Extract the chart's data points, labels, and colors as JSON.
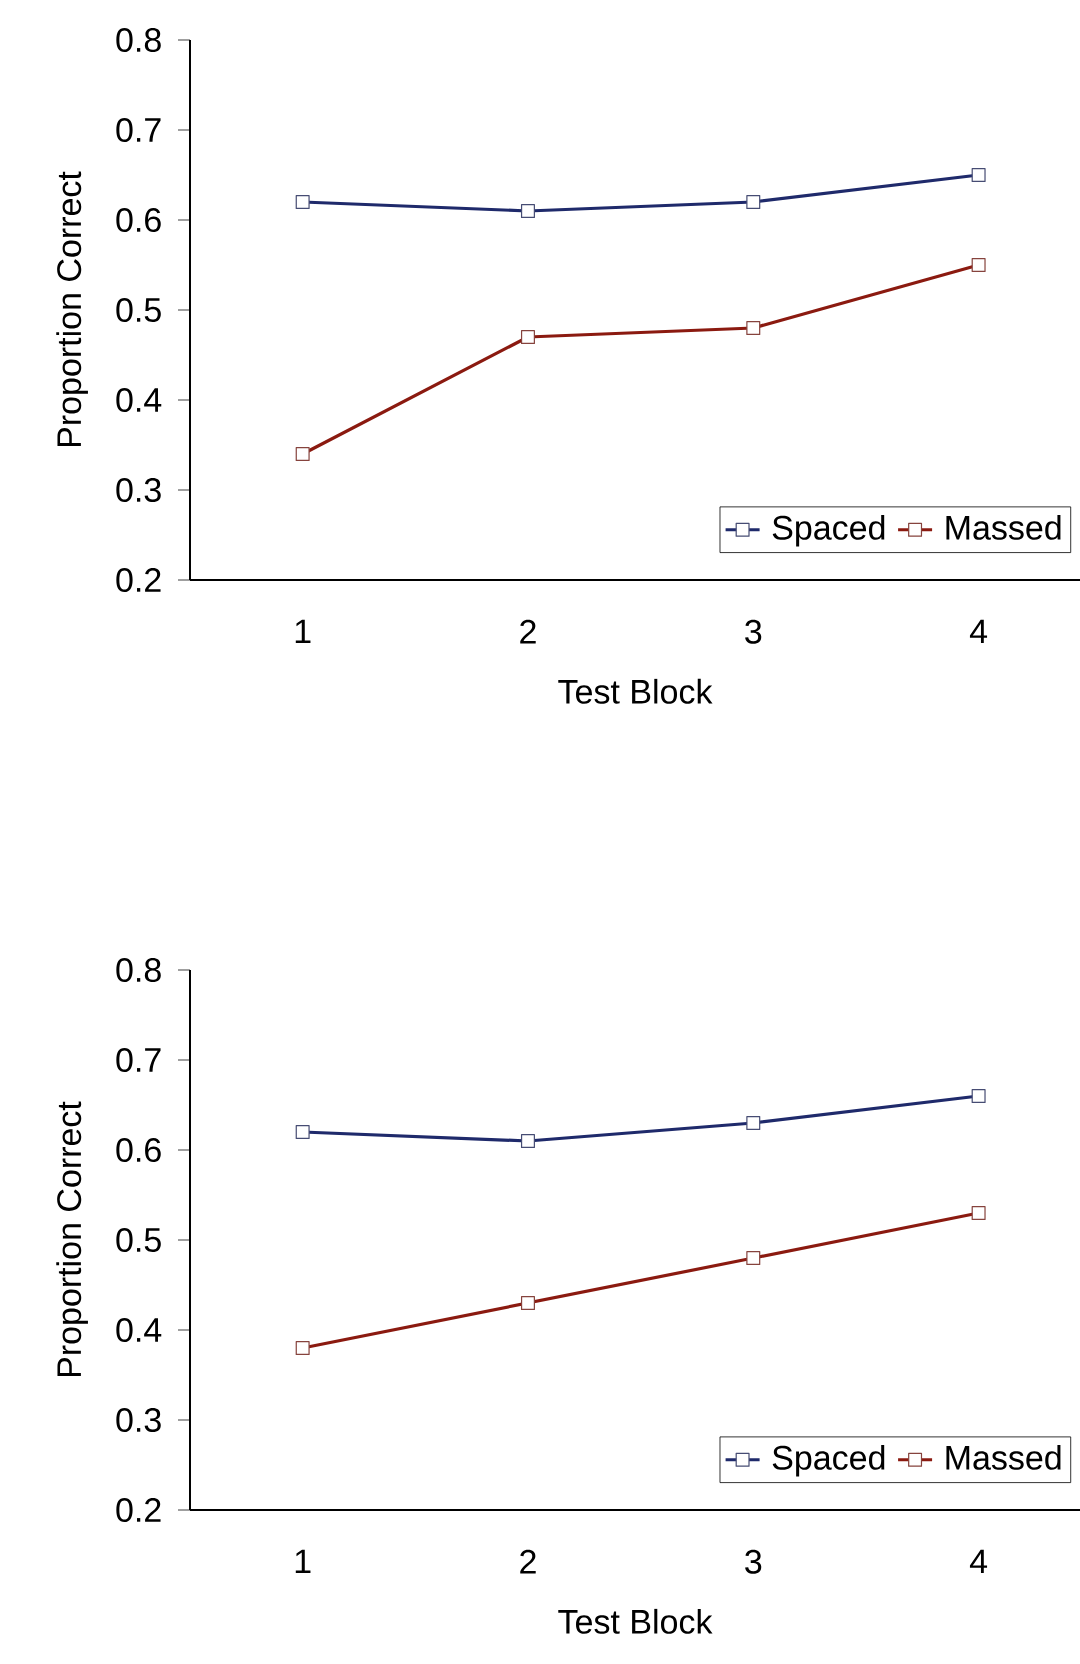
{
  "chart_data": [
    {
      "type": "line",
      "xlabel": "Test Block",
      "ylabel": "Proportion Correct",
      "categories": [
        "1",
        "2",
        "3",
        "4"
      ],
      "series": [
        {
          "name": "Spaced",
          "color": "#1f2a6b",
          "values": [
            0.62,
            0.61,
            0.62,
            0.65
          ]
        },
        {
          "name": "Massed",
          "color": "#8b1a10",
          "values": [
            0.34,
            0.47,
            0.48,
            0.55
          ]
        }
      ],
      "ylim": [
        0.2,
        0.8
      ],
      "yticks": [
        0.2,
        0.3,
        0.4,
        0.5,
        0.6,
        0.7,
        0.8
      ],
      "grid": false,
      "legend": "bottom right",
      "marker": "square",
      "line_style": "solid"
    },
    {
      "type": "line",
      "xlabel": "Test Block",
      "ylabel": "Proportion Correct",
      "categories": [
        "1",
        "2",
        "3",
        "4"
      ],
      "series": [
        {
          "name": "Spaced",
          "color": "#1f2a6b",
          "values": [
            0.62,
            0.61,
            0.63,
            0.66
          ]
        },
        {
          "name": "Massed",
          "color": "#8b1a10",
          "values": [
            0.38,
            0.43,
            0.48,
            0.53
          ]
        }
      ],
      "ylim": [
        0.2,
        0.8
      ],
      "yticks": [
        0.2,
        0.3,
        0.4,
        0.5,
        0.6,
        0.7,
        0.8
      ],
      "grid": false,
      "legend": "bottom right",
      "marker": "square",
      "line_style": "solid"
    }
  ]
}
